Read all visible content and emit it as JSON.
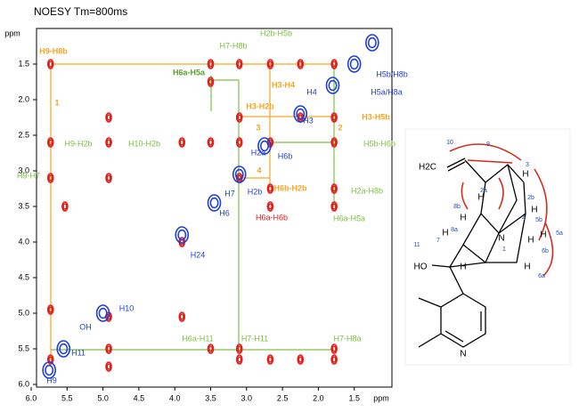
{
  "chart_data": {
    "type": "nmr",
    "title": "NOESY Tm=800ms",
    "xlabel": "ppm",
    "ylabel": "ppm",
    "xlim": [
      6,
      1
    ],
    "ylim": [
      1,
      6
    ],
    "xticks": [
      {
        "value": 6,
        "label": "6.0"
      },
      5.5,
      {
        "value": 5,
        "label": "5.0"
      },
      4.5,
      {
        "value": 4,
        "label": "4.0"
      },
      3.5,
      {
        "value": 3,
        "label": "3.0"
      },
      2.5,
      {
        "value": 2,
        "label": "2.0"
      },
      1.5
    ],
    "yticks": [
      1.5,
      {
        "value": 2,
        "label": "2.0"
      },
      2.5,
      {
        "value": 3,
        "label": "3.0"
      },
      3.5,
      {
        "value": 4,
        "label": "4.0"
      },
      4.5,
      {
        "value": 5,
        "label": "5.0"
      },
      5.5,
      {
        "value": 6,
        "label": "6.0"
      }
    ],
    "series": [
      {
        "color": "#e0201b",
        "x": [
          5.73,
          3.5,
          3.1,
          2.67,
          2.25,
          1.78,
          3.5,
          4.92,
          3.1,
          2.25,
          1.78,
          5.73,
          4.92,
          3.9,
          3.5,
          3.1,
          2.67,
          1.78,
          5.73,
          4.92,
          3.1,
          2.67,
          1.78,
          5.53,
          2.67,
          1.78,
          3.9,
          5.73,
          4.92,
          3.9,
          4.92,
          3.5,
          3.1,
          1.78,
          5.73,
          3.1,
          2.67,
          2.25,
          1.78,
          4.92
        ],
        "y": [
          1.5,
          1.5,
          1.5,
          1.5,
          1.5,
          1.5,
          1.75,
          2.25,
          2.25,
          2.25,
          2.25,
          2.6,
          2.6,
          2.6,
          2.6,
          2.6,
          2.6,
          2.6,
          3.1,
          3.1,
          3.1,
          3.25,
          3.25,
          3.5,
          3.5,
          3.5,
          4.0,
          4.95,
          5.05,
          5.05,
          5.5,
          5.5,
          5.5,
          5.5,
          5.65,
          5.65,
          5.65,
          5.65,
          5.65,
          5.75
        ]
      },
      {
        "color": "#1f3fd6",
        "x": [
          5.75,
          5.55,
          5.0,
          3.9,
          3.45,
          3.1,
          2.75,
          2.25,
          1.8,
          1.5,
          1.25
        ],
        "y": [
          5.8,
          5.5,
          5.0,
          3.9,
          3.45,
          3.05,
          2.65,
          2.2,
          1.8,
          1.5,
          1.2
        ]
      }
    ],
    "annotations": [
      {
        "text": "H9-H8b",
        "color": "#f5a623"
      },
      {
        "text": "H7-H8b",
        "color": "#7cc242"
      },
      {
        "text": "H2b-H5b",
        "color": "#7cc242"
      },
      {
        "text": "H6a-H5a",
        "color": "#5aa02c"
      },
      {
        "text": "H3-H4",
        "color": "#f5a623"
      },
      {
        "text": "H4",
        "color": "#1f3fd6"
      },
      {
        "text": "H5b/H8b",
        "color": "#1f3fd6"
      },
      {
        "text": "H5a/H8a",
        "color": "#1f3fd6"
      },
      {
        "text": "1",
        "color": "#f5a623"
      },
      {
        "text": "H3-H2b",
        "color": "#f5a623"
      },
      {
        "text": "H3",
        "color": "#1f3fd6"
      },
      {
        "text": "H3-H5b",
        "color": "#f5a623"
      },
      {
        "text": "3",
        "color": "#f5a623"
      },
      {
        "text": "2",
        "color": "#f5a623"
      },
      {
        "text": "H9-H2b",
        "color": "#7cc242"
      },
      {
        "text": "H10-H2b",
        "color": "#7cc242"
      },
      {
        "text": "H2a",
        "color": "#1f3fd6"
      },
      {
        "text": "H5b-H6b",
        "color": "#7cc242"
      },
      {
        "text": "H6b",
        "color": "#1f3fd6"
      },
      {
        "text": "H9-H7",
        "color": "#7cc242"
      },
      {
        "text": "4",
        "color": "#f5a623"
      },
      {
        "text": "H7",
        "color": "#1f3fd6"
      },
      {
        "text": "H2b",
        "color": "#1f3fd6"
      },
      {
        "text": "H6b-H2b",
        "color": "#f5a623"
      },
      {
        "text": "H2a-H8b",
        "color": "#7cc242"
      },
      {
        "text": "H6",
        "color": "#1f3fd6"
      },
      {
        "text": "H6a-H6b",
        "color": "#e0201b"
      },
      {
        "text": "H6a-H5a",
        "color": "#7cc242"
      },
      {
        "text": "H24",
        "color": "#1f3fd6"
      },
      {
        "text": "H10",
        "color": "#1f3fd6"
      },
      {
        "text": "OH",
        "color": "#1f3fd6"
      },
      {
        "text": "H6a-H11",
        "color": "#7cc242"
      },
      {
        "text": "H7-H11",
        "color": "#7cc242"
      },
      {
        "text": "H7-H8a",
        "color": "#7cc242"
      },
      {
        "text": "H11",
        "color": "#1f3fd6"
      },
      {
        "text": "H9",
        "color": "#1f3fd6"
      }
    ]
  },
  "structure": {
    "labels": [
      "10",
      "9",
      "H2C",
      "3",
      "H",
      "2a",
      "2b",
      "H",
      "8b",
      "H",
      "4",
      "5b",
      "H",
      "H",
      "H",
      "5a",
      "8a",
      "11",
      "7",
      "H",
      "N",
      "1",
      "6b",
      "H",
      "6a",
      "HO",
      "H",
      "N"
    ]
  }
}
